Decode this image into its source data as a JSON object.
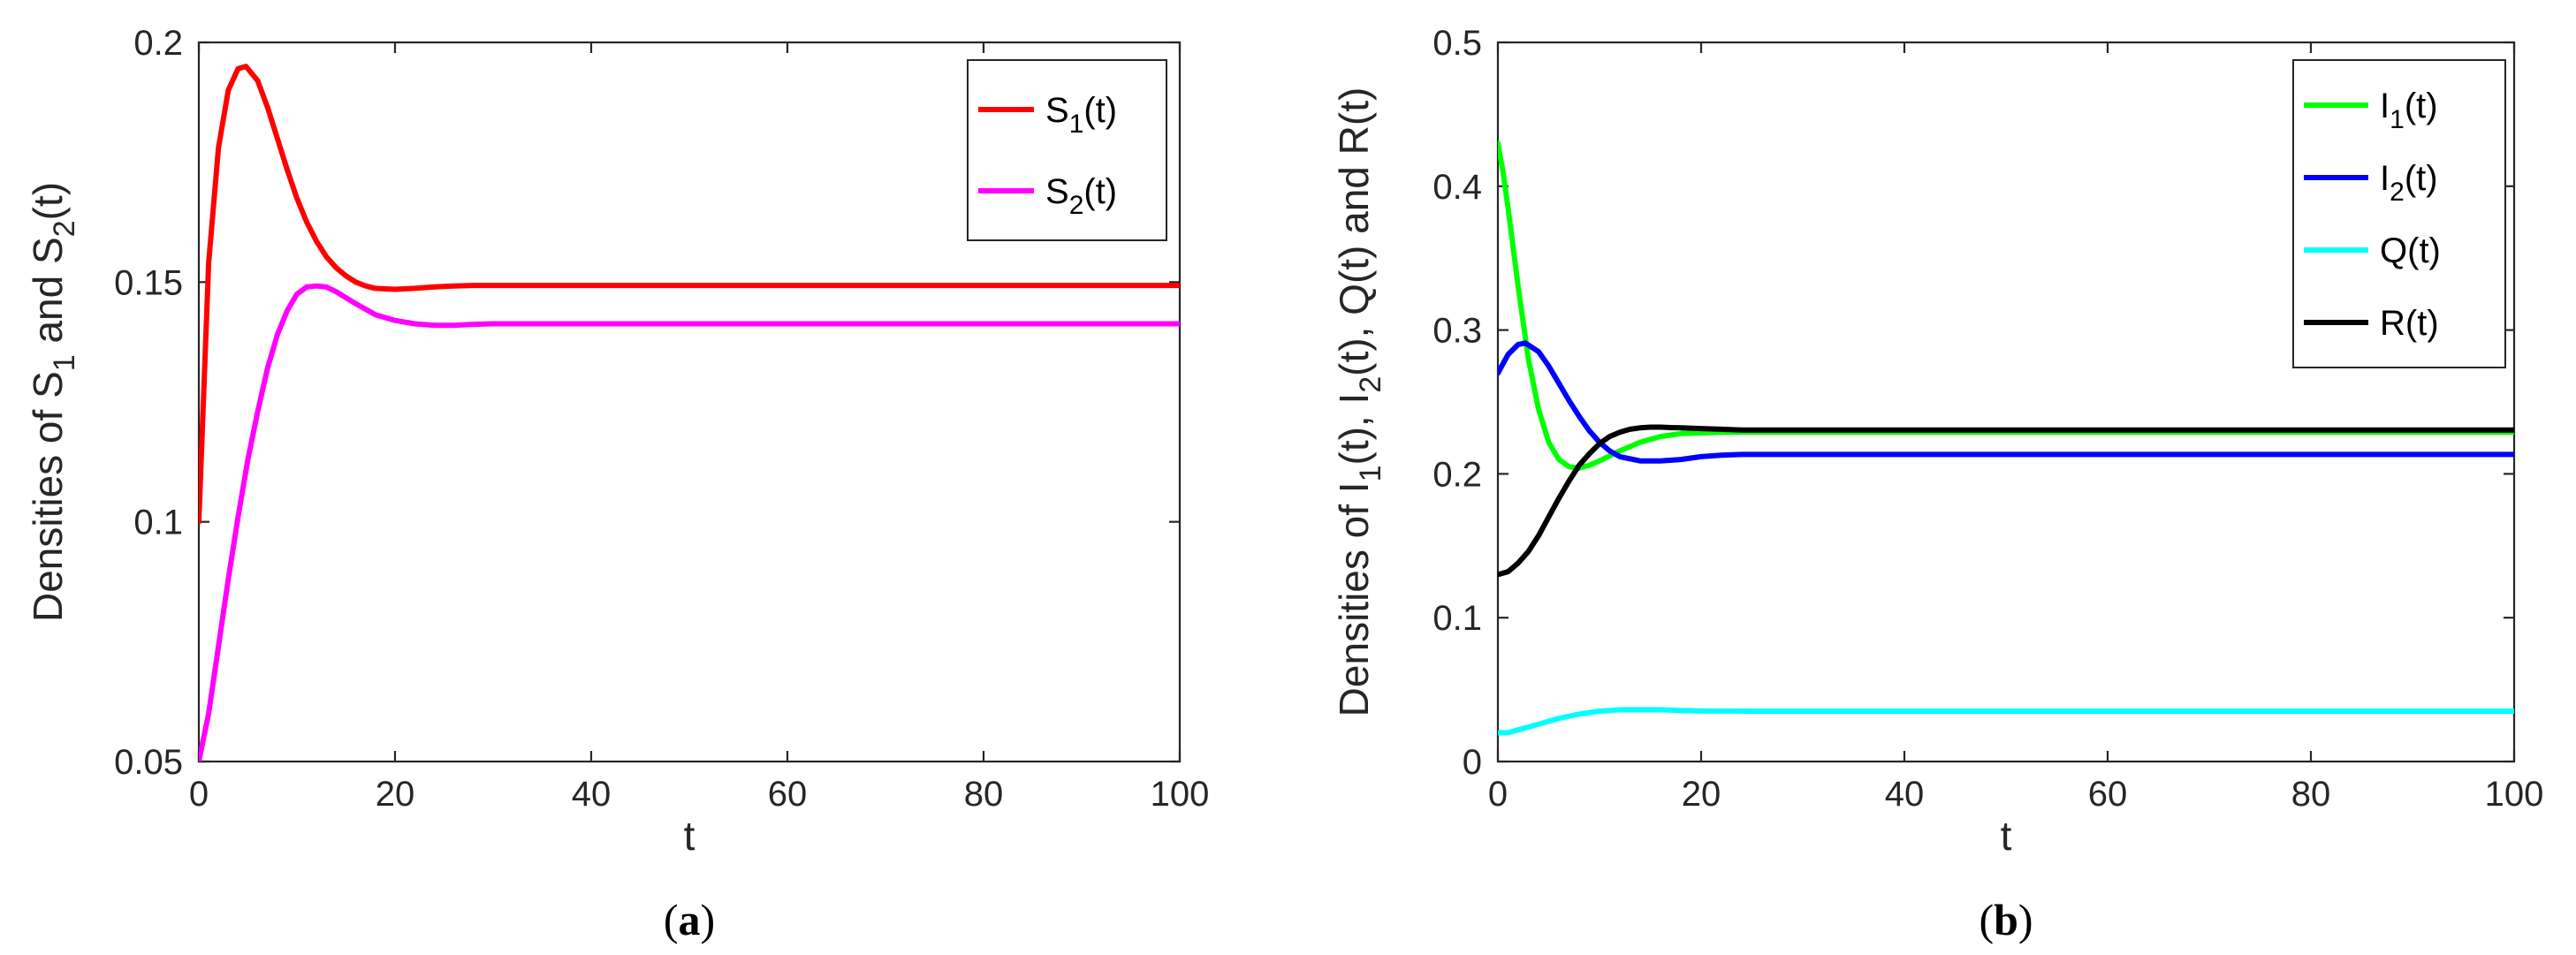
{
  "chart_data": [
    {
      "id": "a",
      "type": "line",
      "caption_letter": "a",
      "xlabel": "t",
      "ylabel": {
        "prefix": "Densities of S",
        "sub1": "1",
        "mid": "  and S",
        "sub2": "2",
        "suffix": "(t)"
      },
      "xlim": [
        0,
        100
      ],
      "ylim": [
        0.05,
        0.2
      ],
      "xticks": [
        0,
        20,
        40,
        60,
        80,
        100
      ],
      "yticks": [
        0.05,
        0.1,
        0.15,
        0.2
      ],
      "ytick_labels": [
        "0.05",
        "0.1",
        "0.15",
        "0.2"
      ],
      "legend_position": "top-right",
      "series": [
        {
          "name": "S1(t)",
          "label_base": "S",
          "label_sub": "1",
          "label_tail": "(t)",
          "color": "#ff0000",
          "x": [
            0,
            1,
            2,
            3,
            4,
            4.8,
            6,
            7,
            8,
            9,
            10,
            11,
            12,
            13,
            14,
            15,
            16,
            17,
            18,
            20,
            22,
            24,
            26,
            28,
            30,
            40,
            60,
            80,
            100
          ],
          "y": [
            0.1,
            0.154,
            0.178,
            0.19,
            0.1945,
            0.195,
            0.192,
            0.1865,
            0.18,
            0.1735,
            0.1675,
            0.1625,
            0.1585,
            0.1553,
            0.153,
            0.1513,
            0.15,
            0.1492,
            0.1487,
            0.1485,
            0.1487,
            0.149,
            0.1492,
            0.1493,
            0.1493,
            0.1493,
            0.1493,
            0.1493,
            0.1493
          ]
        },
        {
          "name": "S2(t)",
          "label_base": "S",
          "label_sub": "2",
          "label_tail": "(t)",
          "color": "#ff00ff",
          "x": [
            0,
            1,
            2,
            3,
            4,
            5,
            6,
            7,
            8,
            9,
            10,
            11,
            12,
            13,
            14,
            16,
            18,
            20,
            22,
            24,
            26,
            28,
            30,
            40,
            60,
            80,
            100
          ],
          "y": [
            0.05,
            0.06,
            0.074,
            0.088,
            0.101,
            0.113,
            0.123,
            0.132,
            0.139,
            0.144,
            0.1475,
            0.149,
            0.1492,
            0.149,
            0.148,
            0.1455,
            0.1432,
            0.142,
            0.1413,
            0.141,
            0.141,
            0.1412,
            0.1413,
            0.1413,
            0.1413,
            0.1413,
            0.1413
          ]
        }
      ]
    },
    {
      "id": "b",
      "type": "line",
      "caption_letter": "b",
      "xlabel": "t",
      "ylabel": {
        "prefix": "Densities of I",
        "sub1": "1",
        "mid": "(t), I",
        "sub2": "2",
        "suffix": "(t), Q(t) and R(t)"
      },
      "xlim": [
        0,
        100
      ],
      "ylim": [
        0,
        0.5
      ],
      "xticks": [
        0,
        20,
        40,
        60,
        80,
        100
      ],
      "yticks": [
        0,
        0.1,
        0.2,
        0.3,
        0.4,
        0.5
      ],
      "ytick_labels": [
        "0",
        "0.1",
        "0.2",
        "0.3",
        "0.4",
        "0.5"
      ],
      "legend_position": "top-right",
      "series": [
        {
          "name": "I1(t)",
          "label_base": "I",
          "label_sub": "1",
          "label_tail": "(t)",
          "color": "#00ff00",
          "x": [
            0,
            0.5,
            1,
            2,
            3,
            4,
            5,
            6,
            7,
            8,
            9,
            10,
            12,
            14,
            16,
            18,
            20,
            22,
            24,
            26,
            28,
            30,
            40,
            60,
            80,
            100
          ],
          "y": [
            0.43,
            0.41,
            0.385,
            0.33,
            0.28,
            0.245,
            0.222,
            0.21,
            0.205,
            0.204,
            0.206,
            0.209,
            0.216,
            0.222,
            0.226,
            0.228,
            0.2285,
            0.229,
            0.229,
            0.229,
            0.229,
            0.229,
            0.229,
            0.229,
            0.229,
            0.229
          ]
        },
        {
          "name": "I2(t)",
          "label_base": "I",
          "label_sub": "2",
          "label_tail": "(t)",
          "color": "#0000ff",
          "x": [
            0,
            1,
            2,
            2.7,
            4,
            5,
            6,
            7,
            8,
            9,
            10,
            11,
            12,
            14,
            16,
            18,
            20,
            22,
            24,
            26,
            30,
            40,
            60,
            80,
            100
          ],
          "y": [
            0.27,
            0.283,
            0.29,
            0.291,
            0.285,
            0.275,
            0.263,
            0.251,
            0.24,
            0.23,
            0.222,
            0.216,
            0.212,
            0.209,
            0.209,
            0.21,
            0.212,
            0.213,
            0.2135,
            0.2135,
            0.2135,
            0.2135,
            0.2135,
            0.2135,
            0.2135
          ]
        },
        {
          "name": "Q(t)",
          "label_base": "Q",
          "label_sub": "",
          "label_tail": "(t)",
          "color": "#00ffff",
          "x": [
            0,
            1,
            2,
            4,
            6,
            8,
            10,
            12,
            14,
            16,
            18,
            20,
            25,
            30,
            40,
            60,
            80,
            100
          ],
          "y": [
            0.02,
            0.02,
            0.022,
            0.026,
            0.03,
            0.033,
            0.035,
            0.036,
            0.036,
            0.036,
            0.0355,
            0.0352,
            0.035,
            0.035,
            0.035,
            0.035,
            0.035,
            0.035
          ]
        },
        {
          "name": "R(t)",
          "label_base": "R",
          "label_sub": "",
          "label_tail": "(t)",
          "color": "#000000",
          "x": [
            0,
            1,
            2,
            3,
            4,
            5,
            6,
            7,
            8,
            9,
            10,
            11,
            12,
            13,
            14,
            15,
            16,
            17,
            18,
            20,
            22,
            24,
            26,
            30,
            40,
            60,
            80,
            100
          ],
          "y": [
            0.13,
            0.132,
            0.138,
            0.146,
            0.157,
            0.17,
            0.183,
            0.195,
            0.206,
            0.214,
            0.221,
            0.226,
            0.229,
            0.231,
            0.232,
            0.2325,
            0.2325,
            0.2322,
            0.232,
            0.2315,
            0.231,
            0.2305,
            0.2305,
            0.2305,
            0.2305,
            0.2305,
            0.2305,
            0.2305
          ]
        }
      ]
    }
  ]
}
